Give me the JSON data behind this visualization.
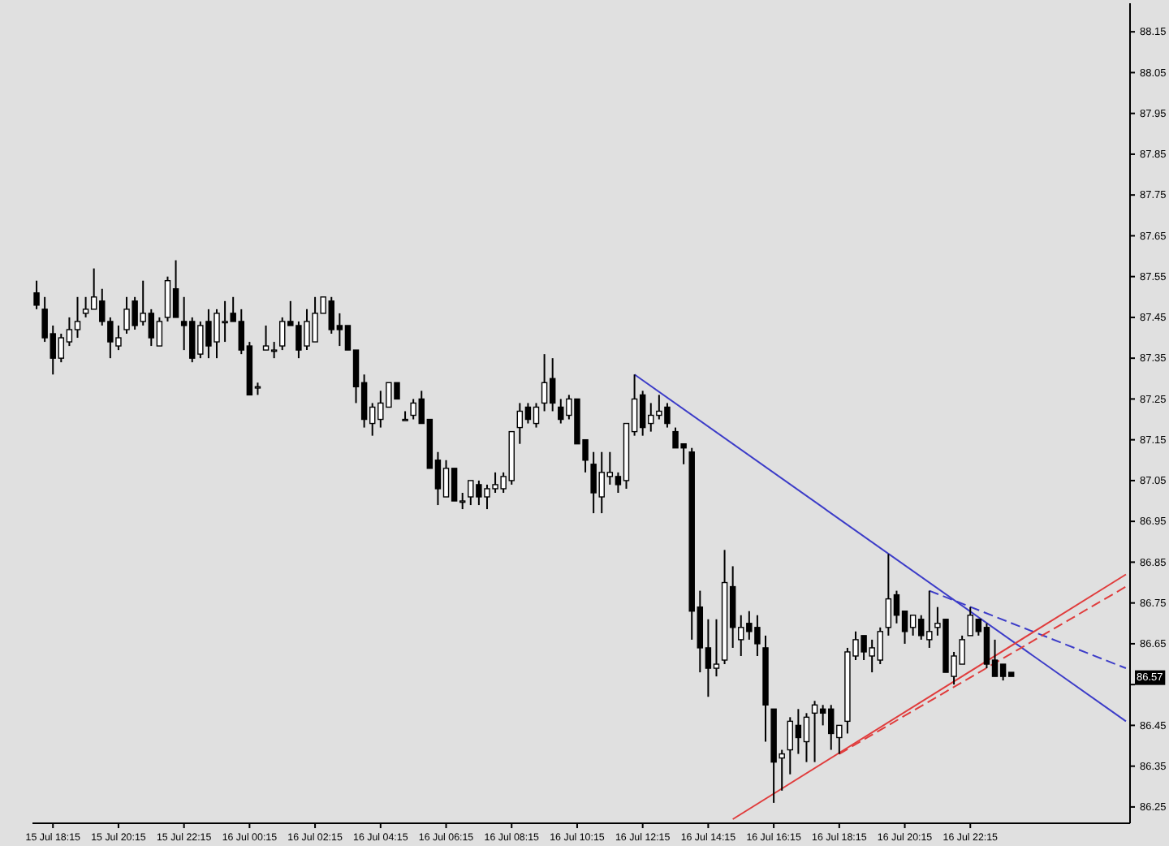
{
  "chart_data": {
    "type": "candlestick",
    "categories": [
      null,
      null,
      "15 Jul 18:15",
      null,
      null,
      null,
      null,
      null,
      null,
      null,
      "15 Jul 20:15",
      null,
      null,
      null,
      null,
      null,
      null,
      null,
      "15 Jul 22:15",
      null,
      null,
      null,
      null,
      null,
      null,
      null,
      "16 Jul 00:15",
      null,
      null,
      null,
      null,
      null,
      null,
      null,
      "16 Jul 02:15",
      null,
      null,
      null,
      null,
      null,
      null,
      null,
      "16 Jul 04:15",
      null,
      null,
      null,
      null,
      null,
      null,
      null,
      "16 Jul 06:15",
      null,
      null,
      null,
      null,
      null,
      null,
      null,
      "16 Jul 08:15",
      null,
      null,
      null,
      null,
      null,
      null,
      null,
      "16 Jul 10:15",
      null,
      null,
      null,
      null,
      null,
      null,
      null,
      "16 Jul 12:15",
      null,
      null,
      null,
      null,
      null,
      null,
      null,
      "16 Jul 14:15",
      null,
      null,
      null,
      null,
      null,
      null,
      null,
      "16 Jul 16:15",
      null,
      null,
      null,
      null,
      null,
      null,
      null,
      "16 Jul 18:15",
      null,
      null,
      null,
      null,
      null,
      null,
      null,
      "16 Jul 20:15",
      null,
      null,
      null,
      null,
      null,
      null,
      null,
      "16 Jul 22:15",
      null,
      null,
      null,
      null,
      null,
      null,
      null,
      null,
      null,
      null,
      null,
      null,
      null,
      null,
      null,
      null,
      null,
      null,
      null
    ],
    "ohlc": [
      [
        87.51,
        87.54,
        87.47,
        87.48
      ],
      [
        87.47,
        87.5,
        87.39,
        87.4
      ],
      [
        87.41,
        87.43,
        87.31,
        87.35
      ],
      [
        87.35,
        87.41,
        87.34,
        87.4
      ],
      [
        87.39,
        87.45,
        87.38,
        87.42
      ],
      [
        87.42,
        87.5,
        87.4,
        87.44
      ],
      [
        87.46,
        87.5,
        87.45,
        87.47
      ],
      [
        87.47,
        87.57,
        87.47,
        87.5
      ],
      [
        87.49,
        87.52,
        87.43,
        87.44
      ],
      [
        87.44,
        87.45,
        87.35,
        87.39
      ],
      [
        87.38,
        87.43,
        87.37,
        87.4
      ],
      [
        87.42,
        87.5,
        87.41,
        87.47
      ],
      [
        87.49,
        87.5,
        87.42,
        87.43
      ],
      [
        87.44,
        87.54,
        87.43,
        87.46
      ],
      [
        87.46,
        87.47,
        87.38,
        87.4
      ],
      [
        87.38,
        87.45,
        87.38,
        87.44
      ],
      [
        87.45,
        87.55,
        87.44,
        87.54
      ],
      [
        87.52,
        87.59,
        87.45,
        87.45
      ],
      [
        87.44,
        87.5,
        87.37,
        87.43
      ],
      [
        87.44,
        87.45,
        87.34,
        87.35
      ],
      [
        87.36,
        87.44,
        87.35,
        87.43
      ],
      [
        87.44,
        87.47,
        87.35,
        87.38
      ],
      [
        87.39,
        87.47,
        87.35,
        87.46
      ],
      [
        87.44,
        87.49,
        87.39,
        87.44
      ],
      [
        87.46,
        87.5,
        87.44,
        87.44
      ],
      [
        87.44,
        87.47,
        87.36,
        87.37
      ],
      [
        87.38,
        87.39,
        87.26,
        87.26
      ],
      [
        87.28,
        87.29,
        87.26,
        87.28
      ],
      [
        87.37,
        87.43,
        87.37,
        87.38
      ],
      [
        87.37,
        87.39,
        87.35,
        87.37
      ],
      [
        87.38,
        87.45,
        87.37,
        87.44
      ],
      [
        87.44,
        87.49,
        87.43,
        87.43
      ],
      [
        87.43,
        87.44,
        87.35,
        87.37
      ],
      [
        87.38,
        87.47,
        87.37,
        87.44
      ],
      [
        87.39,
        87.5,
        87.39,
        87.46
      ],
      [
        87.46,
        87.5,
        87.46,
        87.5
      ],
      [
        87.49,
        87.5,
        87.41,
        87.42
      ],
      [
        87.43,
        87.46,
        87.38,
        87.42
      ],
      [
        87.43,
        87.43,
        87.37,
        87.37
      ],
      [
        87.37,
        87.37,
        87.24,
        87.28
      ],
      [
        87.29,
        87.31,
        87.18,
        87.2
      ],
      [
        87.19,
        87.24,
        87.16,
        87.23
      ],
      [
        87.2,
        87.27,
        87.18,
        87.24
      ],
      [
        87.23,
        87.29,
        87.23,
        87.29
      ],
      [
        87.29,
        87.29,
        87.25,
        87.25
      ],
      [
        87.2,
        87.22,
        87.2,
        87.2
      ],
      [
        87.21,
        87.25,
        87.2,
        87.24
      ],
      [
        87.25,
        87.27,
        87.19,
        87.19
      ],
      [
        87.2,
        87.2,
        87.08,
        87.08
      ],
      [
        87.1,
        87.12,
        86.99,
        87.03
      ],
      [
        87.01,
        87.1,
        87.01,
        87.08
      ],
      [
        87.08,
        87.08,
        87.0,
        87.0
      ],
      [
        87.0,
        87.02,
        86.98,
        87.0
      ],
      [
        87.01,
        87.05,
        86.99,
        87.05
      ],
      [
        87.04,
        87.05,
        86.99,
        87.01
      ],
      [
        87.01,
        87.04,
        86.98,
        87.03
      ],
      [
        87.03,
        87.07,
        87.02,
        87.04
      ],
      [
        87.03,
        87.07,
        87.02,
        87.06
      ],
      [
        87.05,
        87.17,
        87.04,
        87.17
      ],
      [
        87.18,
        87.24,
        87.14,
        87.22
      ],
      [
        87.23,
        87.24,
        87.19,
        87.2
      ],
      [
        87.19,
        87.24,
        87.18,
        87.23
      ],
      [
        87.24,
        87.36,
        87.22,
        87.29
      ],
      [
        87.3,
        87.35,
        87.22,
        87.24
      ],
      [
        87.23,
        87.25,
        87.19,
        87.2
      ],
      [
        87.21,
        87.26,
        87.2,
        87.25
      ],
      [
        87.25,
        87.25,
        87.14,
        87.14
      ],
      [
        87.15,
        87.15,
        87.07,
        87.1
      ],
      [
        87.09,
        87.12,
        86.97,
        87.02
      ],
      [
        87.01,
        87.12,
        86.97,
        87.07
      ],
      [
        87.06,
        87.12,
        87.04,
        87.07
      ],
      [
        87.06,
        87.07,
        87.02,
        87.04
      ],
      [
        87.05,
        87.19,
        87.03,
        87.19
      ],
      [
        87.17,
        87.31,
        87.16,
        87.25
      ],
      [
        87.26,
        87.27,
        87.16,
        87.18
      ],
      [
        87.19,
        87.24,
        87.17,
        87.21
      ],
      [
        87.21,
        87.26,
        87.2,
        87.22
      ],
      [
        87.23,
        87.24,
        87.18,
        87.19
      ],
      [
        87.17,
        87.18,
        87.13,
        87.13
      ],
      [
        87.14,
        87.14,
        87.09,
        87.13
      ],
      [
        87.12,
        87.13,
        86.66,
        86.73
      ],
      [
        86.74,
        86.78,
        86.58,
        86.64
      ],
      [
        86.64,
        86.71,
        86.52,
        86.59
      ],
      [
        86.59,
        86.71,
        86.57,
        86.6
      ],
      [
        86.61,
        86.88,
        86.6,
        86.8
      ],
      [
        86.79,
        86.84,
        86.64,
        86.69
      ],
      [
        86.66,
        86.72,
        86.62,
        86.69
      ],
      [
        86.7,
        86.73,
        86.66,
        86.68
      ],
      [
        86.69,
        86.72,
        86.62,
        86.65
      ],
      [
        86.64,
        86.67,
        86.41,
        86.5
      ],
      [
        86.49,
        86.49,
        86.26,
        86.36
      ],
      [
        86.37,
        86.39,
        86.29,
        86.38
      ],
      [
        86.39,
        86.47,
        86.33,
        86.46
      ],
      [
        86.45,
        86.49,
        86.38,
        86.42
      ],
      [
        86.41,
        86.48,
        86.36,
        86.47
      ],
      [
        86.48,
        86.51,
        86.36,
        86.5
      ],
      [
        86.49,
        86.5,
        86.45,
        86.48
      ],
      [
        86.49,
        86.5,
        86.39,
        86.43
      ],
      [
        86.42,
        86.45,
        86.38,
        86.45
      ],
      [
        86.46,
        86.64,
        86.43,
        86.63
      ],
      [
        86.62,
        86.68,
        86.61,
        86.66
      ],
      [
        86.67,
        86.67,
        86.61,
        86.63
      ],
      [
        86.62,
        86.66,
        86.58,
        86.64
      ],
      [
        86.61,
        86.69,
        86.6,
        86.68
      ],
      [
        86.69,
        86.87,
        86.67,
        86.76
      ],
      [
        86.77,
        86.78,
        86.7,
        86.72
      ],
      [
        86.73,
        86.73,
        86.65,
        86.68
      ],
      [
        86.69,
        86.72,
        86.67,
        86.72
      ],
      [
        86.71,
        86.72,
        86.66,
        86.67
      ],
      [
        86.66,
        86.78,
        86.64,
        86.68
      ],
      [
        86.69,
        86.74,
        86.67,
        86.7
      ],
      [
        86.71,
        86.71,
        86.58,
        86.58
      ],
      [
        86.57,
        86.63,
        86.55,
        86.62
      ],
      [
        86.6,
        86.67,
        86.6,
        86.66
      ],
      [
        86.67,
        86.74,
        86.67,
        86.72
      ],
      [
        86.71,
        86.71,
        86.67,
        86.68
      ],
      [
        86.69,
        86.7,
        86.59,
        86.6
      ],
      [
        86.61,
        86.66,
        86.57,
        86.57
      ],
      [
        86.6,
        86.6,
        86.56,
        86.57
      ],
      [
        86.58,
        86.58,
        86.57,
        86.57
      ],
      null,
      null,
      null,
      null,
      null,
      null,
      null,
      null,
      null,
      null,
      null,
      null,
      null,
      null
    ],
    "series": [
      {
        "type": "line",
        "color": "#3c3cc8",
        "line_style": "solid",
        "values": [
          null,
          null,
          null,
          null,
          null,
          null,
          null,
          null,
          null,
          null,
          null,
          null,
          null,
          null,
          null,
          null,
          null,
          null,
          null,
          null,
          null,
          null,
          null,
          null,
          null,
          null,
          null,
          null,
          null,
          null,
          null,
          null,
          null,
          null,
          null,
          null,
          null,
          null,
          null,
          null,
          null,
          null,
          null,
          null,
          null,
          null,
          null,
          null,
          null,
          null,
          null,
          null,
          null,
          null,
          null,
          null,
          null,
          null,
          null,
          null,
          null,
          null,
          null,
          null,
          null,
          null,
          null,
          null,
          null,
          null,
          null,
          null,
          null,
          87.31,
          null,
          null,
          null,
          null,
          null,
          null,
          null,
          null,
          null,
          null,
          null,
          null,
          null,
          null,
          null,
          null,
          null,
          null,
          null,
          null,
          null,
          null,
          null,
          null,
          null,
          null,
          null,
          null,
          null,
          null,
          null,
          null,
          null,
          null,
          null,
          null,
          null,
          null,
          null,
          null,
          null,
          null,
          null,
          null,
          null,
          null,
          null,
          null,
          null,
          null,
          null,
          null,
          null,
          null,
          null,
          null,
          null,
          null,
          null,
          86.46
        ]
      },
      {
        "type": "line",
        "color": "#3c3cc8",
        "line_style": "dashed",
        "values": [
          null,
          null,
          null,
          null,
          null,
          null,
          null,
          null,
          null,
          null,
          null,
          null,
          null,
          null,
          null,
          null,
          null,
          null,
          null,
          null,
          null,
          null,
          null,
          null,
          null,
          null,
          null,
          null,
          null,
          null,
          null,
          null,
          null,
          null,
          null,
          null,
          null,
          null,
          null,
          null,
          null,
          null,
          null,
          null,
          null,
          null,
          null,
          null,
          null,
          null,
          null,
          null,
          null,
          null,
          null,
          null,
          null,
          null,
          null,
          null,
          null,
          null,
          null,
          null,
          null,
          null,
          null,
          null,
          null,
          null,
          null,
          null,
          null,
          null,
          null,
          null,
          null,
          null,
          null,
          null,
          null,
          null,
          null,
          null,
          null,
          null,
          null,
          null,
          null,
          null,
          null,
          null,
          null,
          null,
          null,
          null,
          null,
          null,
          null,
          null,
          null,
          null,
          null,
          null,
          null,
          null,
          null,
          null,
          null,
          86.78,
          null,
          null,
          null,
          null,
          null,
          null,
          null,
          null,
          null,
          null,
          null,
          null,
          null,
          null,
          null,
          null,
          null,
          null,
          null,
          null,
          null,
          null,
          null,
          86.59
        ]
      },
      {
        "type": "line",
        "color": "#e03c3c",
        "line_style": "solid",
        "values": [
          null,
          null,
          null,
          null,
          null,
          null,
          null,
          null,
          null,
          null,
          null,
          null,
          null,
          null,
          null,
          null,
          null,
          null,
          null,
          null,
          null,
          null,
          null,
          null,
          null,
          null,
          null,
          null,
          null,
          null,
          null,
          null,
          null,
          null,
          null,
          null,
          null,
          null,
          null,
          null,
          null,
          null,
          null,
          null,
          null,
          null,
          null,
          null,
          null,
          null,
          null,
          null,
          null,
          null,
          null,
          null,
          null,
          null,
          null,
          null,
          null,
          null,
          null,
          null,
          null,
          null,
          null,
          null,
          null,
          null,
          null,
          null,
          null,
          null,
          null,
          null,
          null,
          null,
          null,
          null,
          null,
          null,
          null,
          null,
          null,
          86.22,
          null,
          null,
          null,
          null,
          null,
          null,
          null,
          null,
          null,
          null,
          null,
          null,
          null,
          null,
          null,
          null,
          null,
          null,
          null,
          null,
          null,
          null,
          null,
          null,
          null,
          null,
          null,
          null,
          null,
          null,
          null,
          null,
          null,
          null,
          null,
          null,
          null,
          null,
          null,
          null,
          null,
          null,
          null,
          null,
          null,
          null,
          null,
          86.82
        ]
      },
      {
        "type": "line",
        "color": "#e03c3c",
        "line_style": "dashed",
        "values": [
          null,
          null,
          null,
          null,
          null,
          null,
          null,
          null,
          null,
          null,
          null,
          null,
          null,
          null,
          null,
          null,
          null,
          null,
          null,
          null,
          null,
          null,
          null,
          null,
          null,
          null,
          null,
          null,
          null,
          null,
          null,
          null,
          null,
          null,
          null,
          null,
          null,
          null,
          null,
          null,
          null,
          null,
          null,
          null,
          null,
          null,
          null,
          null,
          null,
          null,
          null,
          null,
          null,
          null,
          null,
          null,
          null,
          null,
          null,
          null,
          null,
          null,
          null,
          null,
          null,
          null,
          null,
          null,
          null,
          null,
          null,
          null,
          null,
          null,
          null,
          null,
          null,
          null,
          null,
          null,
          null,
          null,
          null,
          null,
          null,
          null,
          null,
          null,
          null,
          null,
          null,
          null,
          null,
          null,
          null,
          null,
          null,
          null,
          86.38,
          null,
          null,
          null,
          null,
          null,
          null,
          null,
          null,
          null,
          null,
          null,
          null,
          null,
          null,
          null,
          null,
          null,
          null,
          null,
          null,
          null,
          null,
          null,
          null,
          null,
          null,
          null,
          null,
          null,
          null,
          null,
          null,
          null,
          null,
          86.79
        ]
      }
    ],
    "ylim": [
      86.21,
      88.22
    ],
    "yticks": [
      86.25,
      86.35,
      86.45,
      {
        "value": 86.55,
        "label": null
      },
      86.65,
      86.75,
      86.85,
      86.95,
      87.05,
      87.15,
      87.25,
      87.35,
      87.45,
      87.55,
      87.65,
      87.75,
      87.85,
      87.95,
      88.05,
      88.15
    ],
    "annotations": [
      {
        "text": "86.57",
        "y": 86.57
      }
    ]
  }
}
